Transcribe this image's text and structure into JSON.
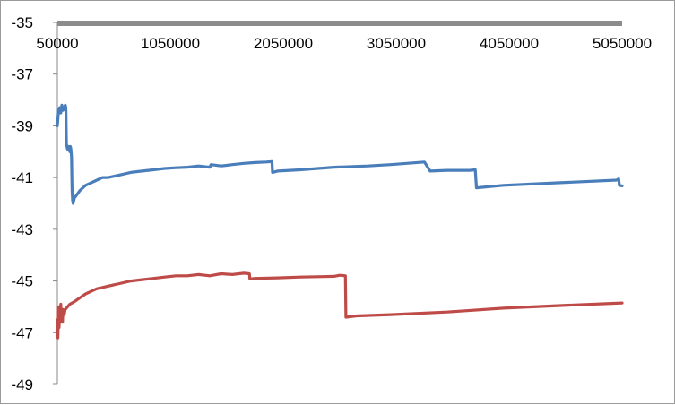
{
  "chart_data": {
    "type": "line",
    "title": "",
    "xlabel": "",
    "ylabel": "",
    "x_ticks": [
      "50000",
      "1050000",
      "2050000",
      "3050000",
      "4050000",
      "5050000"
    ],
    "y_ticks": [
      "-35",
      "-37",
      "-39",
      "-41",
      "-43",
      "-45",
      "-47",
      "-49"
    ],
    "xlim": [
      50000,
      5050000
    ],
    "ylim": [
      -49,
      -35
    ],
    "y_axis_inverted": true,
    "x_axis_at_top": true,
    "grid": false,
    "legend": "none",
    "series": [
      {
        "color": "#4a7ebb",
        "x": [
          50000,
          60000,
          70000,
          80000,
          90000,
          100000,
          110000,
          120000,
          125000,
          130000,
          135000,
          140000,
          150000,
          160000,
          165000,
          170000,
          175000,
          180000,
          185000,
          190000,
          195000,
          200000,
          250000,
          300000,
          350000,
          400000,
          450000,
          500000,
          550000,
          600000,
          700000,
          800000,
          900000,
          1000000,
          1100000,
          1200000,
          1300000,
          1400000,
          1410000,
          1500000,
          1600000,
          1700000,
          1800000,
          1900000,
          1950000,
          1955000,
          2000000,
          2200000,
          2500000,
          2800000,
          3000000,
          3300000,
          3350000,
          3500000,
          3700000,
          3750000,
          3760000,
          3800000,
          4000000,
          4500000,
          5000000,
          5020000,
          5025000,
          5050000
        ],
        "y": [
          -39.0,
          -38.4,
          -38.3,
          -38.5,
          -38.2,
          -38.4,
          -38.3,
          -38.2,
          -38.3,
          -39.7,
          -39.8,
          -39.9,
          -39.8,
          -40.0,
          -39.8,
          -39.9,
          -40.2,
          -41.5,
          -41.9,
          -42.0,
          -41.9,
          -41.8,
          -41.5,
          -41.3,
          -41.2,
          -41.1,
          -41.0,
          -41.0,
          -40.95,
          -40.9,
          -40.8,
          -40.75,
          -40.7,
          -40.65,
          -40.62,
          -40.6,
          -40.55,
          -40.6,
          -40.5,
          -40.55,
          -40.5,
          -40.45,
          -40.42,
          -40.4,
          -40.38,
          -40.8,
          -40.75,
          -40.7,
          -40.6,
          -40.55,
          -40.5,
          -40.4,
          -40.75,
          -40.72,
          -40.72,
          -40.7,
          -41.4,
          -41.38,
          -41.3,
          -41.2,
          -41.1,
          -41.05,
          -41.3,
          -41.32
        ]
      },
      {
        "color": "#be4b48",
        "x": [
          50000,
          55000,
          60000,
          65000,
          70000,
          75000,
          80000,
          85000,
          90000,
          95000,
          100000,
          110000,
          120000,
          140000,
          160000,
          200000,
          250000,
          300000,
          350000,
          400000,
          450000,
          500000,
          600000,
          700000,
          800000,
          900000,
          1000000,
          1100000,
          1200000,
          1300000,
          1400000,
          1500000,
          1600000,
          1700000,
          1750000,
          1755000,
          1800000,
          2000000,
          2200000,
          2400000,
          2500000,
          2550000,
          2600000,
          2605000,
          2700000,
          3000000,
          3500000,
          4000000,
          4500000,
          5050000
        ],
        "y": [
          -46.5,
          -47.2,
          -46.0,
          -46.8,
          -46.3,
          -46.6,
          -45.9,
          -46.4,
          -46.2,
          -46.6,
          -46.1,
          -46.3,
          -46.1,
          -46.0,
          -45.9,
          -45.8,
          -45.65,
          -45.5,
          -45.4,
          -45.3,
          -45.25,
          -45.2,
          -45.1,
          -45.0,
          -44.95,
          -44.9,
          -44.85,
          -44.8,
          -44.8,
          -44.75,
          -44.8,
          -44.72,
          -44.75,
          -44.7,
          -44.72,
          -44.92,
          -44.9,
          -44.88,
          -44.85,
          -44.83,
          -44.82,
          -44.78,
          -44.8,
          -46.4,
          -46.35,
          -46.3,
          -46.2,
          -46.05,
          -45.95,
          -45.85
        ]
      }
    ]
  }
}
